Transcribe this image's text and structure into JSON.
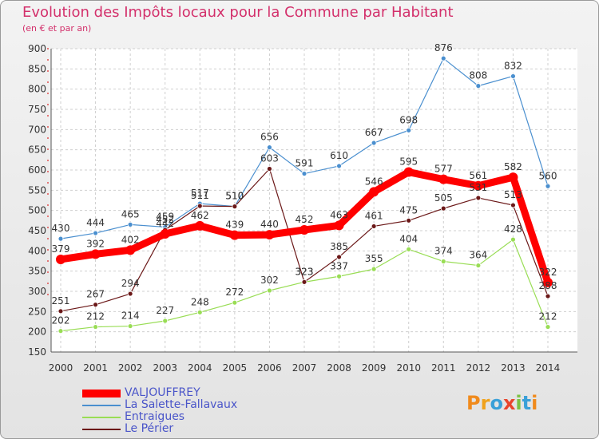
{
  "header": {
    "title": "Evolution des Impôts locaux pour la Commune par Habitant",
    "subtitle": "(en € et par an)"
  },
  "chart_data": {
    "type": "line",
    "title": "Evolution des Impôts locaux pour la Commune par Habitant",
    "subtitle": "(en € et par an)",
    "xlabel": "",
    "ylabel": "",
    "x": [
      2000,
      2001,
      2002,
      2003,
      2004,
      2005,
      2006,
      2007,
      2008,
      2009,
      2010,
      2011,
      2012,
      2013,
      2014
    ],
    "ylim": [
      150,
      900
    ],
    "yticks": [
      150,
      200,
      250,
      300,
      350,
      400,
      450,
      500,
      550,
      600,
      650,
      700,
      750,
      800,
      850,
      900
    ],
    "grid": true,
    "legend_position": "bottom-left",
    "series": [
      {
        "name": "VALJOUFFREY",
        "color": "#ff0000",
        "values": [
          379,
          392,
          402,
          442,
          462,
          439,
          440,
          452,
          463,
          546,
          595,
          577,
          561,
          582,
          322
        ]
      },
      {
        "name": "La Salette-Fallavaux",
        "color": "#4a8fcf",
        "values": [
          430,
          444,
          465,
          459,
          517,
          510,
          656,
          591,
          610,
          667,
          698,
          876,
          808,
          832,
          560
        ]
      },
      {
        "name": "Entraigues",
        "color": "#99dd55",
        "values": [
          202,
          212,
          214,
          227,
          248,
          272,
          302,
          323,
          337,
          355,
          404,
          374,
          364,
          428,
          212
        ]
      },
      {
        "name": "Le Périer",
        "color": "#6b1818",
        "values": [
          251,
          267,
          294,
          452,
          511,
          510,
          603,
          323,
          385,
          461,
          475,
          505,
          531,
          513,
          288
        ]
      }
    ]
  },
  "logo": {
    "text": "Proxiti"
  }
}
